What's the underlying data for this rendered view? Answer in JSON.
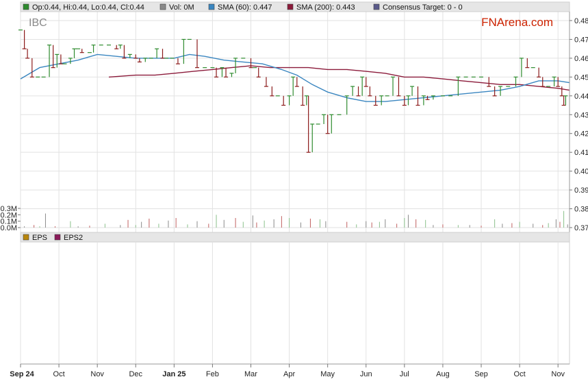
{
  "ticker": "IBC",
  "brand": "FNArena.com",
  "colors": {
    "up": "#2e8b2e",
    "down": "#8b1a1a",
    "sma60": "#3a86c0",
    "sma200": "#8b1a3a",
    "panel_bg": "#ffffff",
    "legend_bg": "#e6e6e6",
    "grid": "#e2e2e2",
    "brand": "#cc2200"
  },
  "legend_top": [
    {
      "swatch": "#2e8b2e",
      "text": "Op:0.44, Hi:0.44, Lo:0.44, Cl:0.44"
    },
    {
      "swatch": "#8a8a8a",
      "text": "Vol: 0M"
    },
    {
      "swatch": "#3a86c0",
      "text": "SMA (60): 0.447"
    },
    {
      "swatch": "#8b1a3a",
      "text": "SMA (200): 0.443"
    },
    {
      "swatch": "#5a5a8a",
      "text": "Consensus Target: 0 - 0"
    }
  ],
  "legend_eps": [
    {
      "swatch": "#b8860b",
      "text": "EPS"
    },
    {
      "swatch": "#8b1a5a",
      "text": "EPS2"
    }
  ],
  "chart_data": {
    "type": "line",
    "price_axis": {
      "ticks": [
        "0.48",
        "0.47",
        "0.46",
        "0.45",
        "0.44",
        "0.43",
        "0.42",
        "0.41",
        "0.40",
        "0.39",
        "0.38",
        "0.37"
      ],
      "ylim": [
        0.37,
        0.485
      ]
    },
    "volume_axis": {
      "ticks": [
        "0.3M",
        "0.2M",
        "0.1M",
        "0.0M"
      ],
      "ylim": [
        0,
        0.3
      ]
    },
    "x_labels": [
      "Sep 24",
      "Oct",
      "Nov",
      "Dec",
      "Jan 25",
      "Feb",
      "Mar",
      "Apr",
      "May",
      "Jun",
      "Jul",
      "Aug",
      "Sep",
      "Oct",
      "Nov"
    ],
    "x_bold": [
      "Sep 24",
      "Jan 25"
    ],
    "x_range": [
      0,
      14.3
    ],
    "price_series": {
      "name": "Close",
      "points": [
        [
          0.0,
          0.475
        ],
        [
          0.1,
          0.465
        ],
        [
          0.18,
          0.46
        ],
        [
          0.3,
          0.45
        ],
        [
          0.45,
          0.45
        ],
        [
          0.6,
          0.45
        ],
        [
          0.75,
          0.467
        ],
        [
          0.85,
          0.455
        ],
        [
          0.95,
          0.462
        ],
        [
          1.05,
          0.457
        ],
        [
          1.15,
          0.457
        ],
        [
          1.3,
          0.46
        ],
        [
          1.4,
          0.465
        ],
        [
          1.5,
          0.465
        ],
        [
          1.6,
          0.463
        ],
        [
          1.8,
          0.463
        ],
        [
          1.9,
          0.467
        ],
        [
          2.1,
          0.467
        ],
        [
          2.3,
          0.467
        ],
        [
          2.5,
          0.465
        ],
        [
          2.6,
          0.467
        ],
        [
          2.7,
          0.46
        ],
        [
          2.85,
          0.462
        ],
        [
          3.0,
          0.46
        ],
        [
          3.1,
          0.458
        ],
        [
          3.25,
          0.46
        ],
        [
          3.4,
          0.46
        ],
        [
          3.55,
          0.465
        ],
        [
          3.7,
          0.46
        ],
        [
          3.8,
          0.46
        ],
        [
          3.95,
          0.46
        ],
        [
          4.1,
          0.457
        ],
        [
          4.25,
          0.47
        ],
        [
          4.4,
          0.47
        ],
        [
          4.6,
          0.455
        ],
        [
          4.8,
          0.455
        ],
        [
          5.0,
          0.455
        ],
        [
          5.1,
          0.45
        ],
        [
          5.25,
          0.455
        ],
        [
          5.35,
          0.45
        ],
        [
          5.5,
          0.452
        ],
        [
          5.6,
          0.46
        ],
        [
          5.8,
          0.46
        ],
        [
          6.0,
          0.455
        ],
        [
          6.1,
          0.455
        ],
        [
          6.2,
          0.45
        ],
        [
          6.4,
          0.445
        ],
        [
          6.55,
          0.44
        ],
        [
          6.7,
          0.44
        ],
        [
          6.85,
          0.435
        ],
        [
          7.0,
          0.44
        ],
        [
          7.1,
          0.45
        ],
        [
          7.2,
          0.445
        ],
        [
          7.35,
          0.435
        ],
        [
          7.45,
          0.44
        ],
        [
          7.5,
          0.41
        ],
        [
          7.6,
          0.425
        ],
        [
          7.75,
          0.425
        ],
        [
          7.9,
          0.43
        ],
        [
          8.0,
          0.42
        ],
        [
          8.1,
          0.43
        ],
        [
          8.3,
          0.43
        ],
        [
          8.5,
          0.44
        ],
        [
          8.65,
          0.445
        ],
        [
          8.8,
          0.44
        ],
        [
          8.9,
          0.45
        ],
        [
          9.0,
          0.445
        ],
        [
          9.1,
          0.44
        ],
        [
          9.25,
          0.435
        ],
        [
          9.4,
          0.44
        ],
        [
          9.55,
          0.44
        ],
        [
          9.7,
          0.45
        ],
        [
          9.85,
          0.44
        ],
        [
          10.0,
          0.435
        ],
        [
          10.1,
          0.44
        ],
        [
          10.2,
          0.445
        ],
        [
          10.35,
          0.435
        ],
        [
          10.5,
          0.44
        ],
        [
          10.6,
          0.438
        ],
        [
          10.75,
          0.44
        ],
        [
          11.0,
          0.44
        ],
        [
          11.2,
          0.44
        ],
        [
          11.4,
          0.45
        ],
        [
          11.6,
          0.45
        ],
        [
          11.8,
          0.45
        ],
        [
          12.0,
          0.45
        ],
        [
          12.2,
          0.445
        ],
        [
          12.35,
          0.44
        ],
        [
          12.5,
          0.445
        ],
        [
          12.7,
          0.445
        ],
        [
          12.9,
          0.45
        ],
        [
          13.05,
          0.46
        ],
        [
          13.2,
          0.455
        ],
        [
          13.35,
          0.455
        ],
        [
          13.5,
          0.45
        ],
        [
          13.6,
          0.445
        ],
        [
          13.75,
          0.445
        ],
        [
          13.9,
          0.45
        ],
        [
          14.0,
          0.445
        ],
        [
          14.1,
          0.44
        ],
        [
          14.15,
          0.435
        ],
        [
          14.2,
          0.44
        ]
      ]
    },
    "sma60": {
      "name": "SMA (60)",
      "points": [
        [
          0,
          0.449
        ],
        [
          0.5,
          0.455
        ],
        [
          1.0,
          0.457
        ],
        [
          1.5,
          0.459
        ],
        [
          2.0,
          0.462
        ],
        [
          2.5,
          0.461
        ],
        [
          3.0,
          0.46
        ],
        [
          3.5,
          0.46
        ],
        [
          4.0,
          0.46
        ],
        [
          4.4,
          0.462
        ],
        [
          4.8,
          0.461
        ],
        [
          5.3,
          0.459
        ],
        [
          5.8,
          0.458
        ],
        [
          6.3,
          0.457
        ],
        [
          6.8,
          0.454
        ],
        [
          7.2,
          0.451
        ],
        [
          7.6,
          0.446
        ],
        [
          8.0,
          0.442
        ],
        [
          8.5,
          0.439
        ],
        [
          9.0,
          0.437
        ],
        [
          9.5,
          0.437
        ],
        [
          10.0,
          0.438
        ],
        [
          10.5,
          0.439
        ],
        [
          11.0,
          0.44
        ],
        [
          11.5,
          0.441
        ],
        [
          12.0,
          0.442
        ],
        [
          12.5,
          0.443
        ],
        [
          13.0,
          0.445
        ],
        [
          13.5,
          0.448
        ],
        [
          14.0,
          0.448
        ],
        [
          14.3,
          0.447
        ]
      ]
    },
    "sma200": {
      "name": "SMA (200)",
      "points": [
        [
          2.3,
          0.45
        ],
        [
          3.0,
          0.451
        ],
        [
          3.5,
          0.451
        ],
        [
          4.0,
          0.452
        ],
        [
          4.5,
          0.453
        ],
        [
          5.0,
          0.454
        ],
        [
          5.5,
          0.455
        ],
        [
          6.0,
          0.456
        ],
        [
          6.5,
          0.455
        ],
        [
          7.0,
          0.455
        ],
        [
          7.5,
          0.455
        ],
        [
          8.0,
          0.454
        ],
        [
          8.5,
          0.454
        ],
        [
          9.0,
          0.453
        ],
        [
          9.5,
          0.452
        ],
        [
          10.0,
          0.45
        ],
        [
          10.5,
          0.45
        ],
        [
          11.0,
          0.449
        ],
        [
          11.5,
          0.448
        ],
        [
          12.0,
          0.447
        ],
        [
          12.5,
          0.446
        ],
        [
          13.0,
          0.446
        ],
        [
          13.5,
          0.445
        ],
        [
          14.0,
          0.444
        ],
        [
          14.3,
          0.443
        ]
      ]
    },
    "volume_series": {
      "name": "Volume",
      "points": [
        [
          0.1,
          0.02
        ],
        [
          0.35,
          0.04
        ],
        [
          0.5,
          0.02
        ],
        [
          0.65,
          0.22
        ],
        [
          0.9,
          0.02
        ],
        [
          1.3,
          0.1
        ],
        [
          1.5,
          0.02
        ],
        [
          1.8,
          0.03
        ],
        [
          2.2,
          0.06
        ],
        [
          2.6,
          0.04
        ],
        [
          2.8,
          0.12
        ],
        [
          3.0,
          0.04
        ],
        [
          3.15,
          0.09
        ],
        [
          3.35,
          0.14
        ],
        [
          3.6,
          0.06
        ],
        [
          3.85,
          0.11
        ],
        [
          4.05,
          0.15
        ],
        [
          4.35,
          0.05
        ],
        [
          4.6,
          0.1
        ],
        [
          4.9,
          0.06
        ],
        [
          5.1,
          0.2
        ],
        [
          5.3,
          0.12
        ],
        [
          5.6,
          0.15
        ],
        [
          5.8,
          0.09
        ],
        [
          6.05,
          0.19
        ],
        [
          6.15,
          0.08
        ],
        [
          6.35,
          0.11
        ],
        [
          6.6,
          0.13
        ],
        [
          6.8,
          0.18
        ],
        [
          7.0,
          0.15
        ],
        [
          7.3,
          0.08
        ],
        [
          7.55,
          0.14
        ],
        [
          7.8,
          0.13
        ],
        [
          7.95,
          0.1
        ],
        [
          8.5,
          0.09
        ],
        [
          8.75,
          0.05
        ],
        [
          9.0,
          0.1
        ],
        [
          9.15,
          0.08
        ],
        [
          9.35,
          0.09
        ],
        [
          9.5,
          0.13
        ],
        [
          9.8,
          0.06
        ],
        [
          10.0,
          0.15
        ],
        [
          10.1,
          0.2
        ],
        [
          10.3,
          0.13
        ],
        [
          10.55,
          0.12
        ],
        [
          10.75,
          0.04
        ],
        [
          11.0,
          0.05
        ],
        [
          11.4,
          0.04
        ],
        [
          11.7,
          0.04
        ],
        [
          12.0,
          0.03
        ],
        [
          12.35,
          0.13
        ],
        [
          12.55,
          0.06
        ],
        [
          12.8,
          0.07
        ],
        [
          13.0,
          0.09
        ],
        [
          13.35,
          0.06
        ],
        [
          13.6,
          0.04
        ],
        [
          13.75,
          0.07
        ],
        [
          13.95,
          0.13
        ],
        [
          14.05,
          0.09
        ],
        [
          14.15,
          0.26
        ],
        [
          14.25,
          0.05
        ]
      ]
    }
  }
}
